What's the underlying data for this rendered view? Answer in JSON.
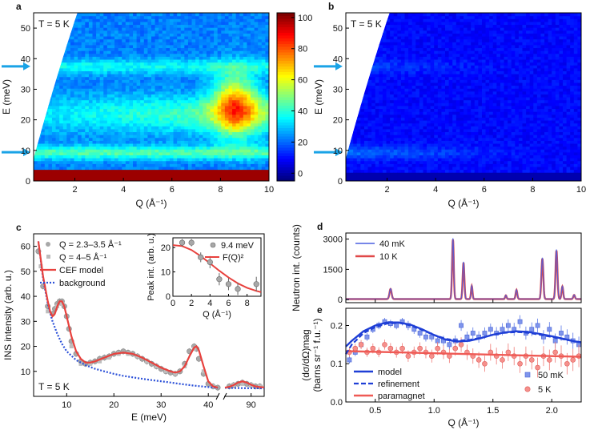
{
  "colors": {
    "cef_model": "#e8413d",
    "background_line": "#2b50d8",
    "data_gray": "#a8a8a8",
    "arrow": "#1aa3e6",
    "trace_40mK": "#4a5ee0",
    "trace_10K": "#e04848",
    "model_blue": "#1f3fd6",
    "paramagnet_red": "#ef5a55"
  },
  "chart_data": [
    {
      "id": "a",
      "type": "heatmap",
      "panel_label": "a",
      "annotation": "T = 5 K",
      "x_label": "Q (Å⁻¹)",
      "y_label": "E (meV)",
      "x_ticks": [
        "2",
        "4",
        "6",
        "8",
        "10"
      ],
      "y_ticks": [
        "0",
        "10",
        "20",
        "30",
        "40",
        "50"
      ],
      "xlim": [
        0.3,
        10
      ],
      "ylim": [
        0,
        55
      ],
      "colorbar": {
        "ticks": [
          "0",
          "20",
          "40",
          "60",
          "80",
          "100"
        ],
        "range": [
          -5,
          103
        ],
        "colormap": "jet"
      },
      "arrows_E": [
        9.4,
        37.5
      ],
      "levels": [
        9.4,
        22,
        37.5
      ]
    },
    {
      "id": "b",
      "type": "heatmap",
      "panel_label": "b",
      "annotation": "T = 5 K",
      "x_label": "Q (Å⁻¹)",
      "y_label": "E (meV)",
      "x_ticks": [
        "2",
        "4",
        "6",
        "8",
        "10"
      ],
      "y_ticks": [
        "0",
        "10",
        "20",
        "30",
        "40",
        "50"
      ],
      "xlim": [
        0.3,
        10
      ],
      "ylim": [
        0,
        55
      ],
      "arrows_E": [
        9.4,
        37.5
      ]
    },
    {
      "id": "c",
      "type": "scatter",
      "panel_label": "c",
      "annotation": "T = 5 K",
      "x_label": "E (meV)",
      "y_label": "INS intensity (arb. u.)",
      "x_ticks": [
        "10",
        "20",
        "30",
        "40",
        "90"
      ],
      "y_ticks": [
        "10",
        "20",
        "30",
        "40",
        "50",
        "60"
      ],
      "xlim_main": [
        3,
        42
      ],
      "xlim_broken": [
        84,
        93
      ],
      "ylim": [
        0,
        65
      ],
      "legend": [
        "Q = 2.3–3.5 Å⁻¹",
        "Q = 4–5 Å⁻¹",
        "CEF model",
        "background"
      ],
      "series": [
        {
          "name": "Q = 2.3–3.5 Å⁻¹",
          "x": [
            4,
            5,
            6,
            7,
            7.5,
            8,
            8.5,
            9,
            9.5,
            10,
            10.5,
            11,
            12,
            13,
            14,
            15,
            16,
            17,
            18,
            19,
            20,
            21,
            22,
            23,
            24,
            25,
            26,
            27,
            28,
            29,
            30,
            31,
            32,
            33,
            34,
            35,
            36,
            37,
            37.5,
            38,
            39,
            40,
            41,
            42,
            85,
            86,
            87,
            88,
            89,
            90,
            91,
            92
          ],
          "y": [
            58,
            44,
            36,
            33,
            35,
            37,
            38,
            38,
            36,
            32,
            27,
            22,
            17,
            14,
            13,
            13.5,
            14,
            15,
            15.5,
            16,
            17,
            17.5,
            18,
            17.5,
            17,
            16,
            15,
            14,
            13,
            12,
            11,
            10,
            9.5,
            9,
            10,
            13,
            18,
            20,
            19,
            15,
            9,
            5,
            4,
            3.5,
            4,
            4.5,
            5,
            5.5,
            5,
            4.5,
            4,
            4
          ]
        },
        {
          "name": "Q = 4–5 Å⁻¹",
          "x": [
            4.5,
            6,
            8,
            9,
            11,
            13,
            15,
            17,
            19,
            21,
            23,
            25,
            27,
            29,
            31,
            33,
            35,
            37,
            39,
            41,
            86,
            88,
            90,
            92
          ],
          "y": [
            52,
            34,
            36,
            37,
            20,
            13,
            13,
            14,
            15.5,
            17,
            17,
            16,
            14,
            12,
            10,
            9,
            12,
            19,
            10,
            4,
            4.5,
            5,
            4.5,
            4
          ]
        }
      ],
      "cef_model": {
        "x": [
          4,
          5,
          6,
          6.5,
          7,
          7.5,
          8,
          8.5,
          9,
          9.5,
          10,
          11,
          12,
          13,
          14,
          15,
          16,
          18,
          20,
          22,
          24,
          26,
          28,
          30,
          32,
          33,
          34,
          35,
          36,
          37,
          37.5,
          38,
          39,
          40,
          41,
          42,
          84,
          85,
          86,
          87,
          88,
          89,
          90,
          91,
          92,
          93
        ],
        "y": [
          62,
          48,
          38,
          34,
          32,
          33,
          36,
          38,
          38,
          36,
          32,
          24,
          18,
          15,
          13.5,
          13.5,
          14,
          15.5,
          17,
          17.5,
          17,
          15.5,
          13.5,
          11.5,
          10,
          9.5,
          10,
          12,
          16,
          19.5,
          20,
          18.5,
          12,
          6,
          4,
          3.5,
          3.5,
          3.8,
          4.5,
          5.5,
          6,
          5.5,
          4.6,
          4,
          3.7,
          3.6
        ]
      },
      "background_model": {
        "x": [
          4,
          5,
          6,
          7,
          8,
          9,
          10,
          12,
          14,
          16,
          18,
          20,
          22,
          25,
          28,
          31,
          34,
          37,
          40,
          42,
          84,
          88,
          93
        ],
        "y": [
          62,
          47,
          37,
          30,
          25,
          21,
          18,
          14.5,
          12.5,
          11,
          10,
          9,
          8.2,
          7.3,
          6.5,
          5.8,
          5,
          4.3,
          3.7,
          3.4,
          3.4,
          3.3,
          3.2
        ]
      },
      "inset": {
        "type": "scatter",
        "x_label": "Q (Å⁻¹)",
        "y_label": "Peak int. (arb. u.)",
        "x_ticks": [
          "0",
          "2",
          "4",
          "6",
          "8"
        ],
        "y_ticks": [
          "0",
          "10",
          "20"
        ],
        "xlim": [
          0,
          9.5
        ],
        "ylim": [
          0,
          24
        ],
        "legend": [
          "9.4 meV",
          "F(Q)²"
        ],
        "points": {
          "name": "9.4 meV",
          "x": [
            1,
            2,
            3,
            4,
            5,
            6,
            7,
            9
          ],
          "y": [
            22,
            22,
            16,
            14,
            7,
            5,
            3,
            5
          ],
          "yerr": [
            1.5,
            1.5,
            2,
            2.5,
            2.5,
            2.5,
            2.5,
            3
          ]
        },
        "fq2": {
          "name": "F(Q)²",
          "x": [
            0,
            1,
            2,
            3,
            4,
            5,
            6,
            7,
            8,
            9,
            9.5
          ],
          "y": [
            21,
            20.6,
            19,
            16.5,
            13.5,
            10.5,
            7.7,
            5.3,
            3.5,
            2.2,
            1.7
          ]
        }
      }
    },
    {
      "id": "d",
      "type": "line",
      "panel_label": "d",
      "y_label": "Neutron int. (counts)",
      "y_ticks": [
        "0",
        "1500",
        "3000"
      ],
      "xlim": [
        0.25,
        2.25
      ],
      "ylim": [
        -150,
        3300
      ],
      "legend": [
        "40 mK",
        "10 K"
      ],
      "peaks": [
        {
          "x": 0.63,
          "h": 500,
          "w": 0.009
        },
        {
          "x": 1.16,
          "h": 2950,
          "w": 0.007
        },
        {
          "x": 1.25,
          "h": 1800,
          "w": 0.007
        },
        {
          "x": 1.32,
          "h": 650,
          "w": 0.006
        },
        {
          "x": 1.61,
          "h": 180,
          "w": 0.006
        },
        {
          "x": 1.7,
          "h": 450,
          "w": 0.007
        },
        {
          "x": 1.92,
          "h": 2000,
          "w": 0.008
        },
        {
          "x": 2.04,
          "h": 2400,
          "w": 0.008
        },
        {
          "x": 2.09,
          "h": 620,
          "w": 0.007
        },
        {
          "x": 2.19,
          "h": 200,
          "w": 0.007
        }
      ],
      "baseline": 30
    },
    {
      "id": "e",
      "type": "scatter",
      "panel_label": "e",
      "x_label": "Q (Å⁻¹)",
      "y_label": "(dσ/dΩ)mag (barns sr⁻¹ f.u.⁻¹)",
      "x_ticks": [
        "0.5",
        "1.0",
        "1.5",
        "2.0"
      ],
      "y_ticks": [
        "0.0",
        "0.1",
        "0.2"
      ],
      "xlim": [
        0.25,
        2.25
      ],
      "ylim": [
        0,
        0.245
      ],
      "legend": [
        "model",
        "refinement",
        "paramagnet",
        "50 mK",
        "5 K"
      ],
      "series": [
        {
          "name": "50 mK",
          "x": [
            0.28,
            0.33,
            0.38,
            0.43,
            0.48,
            0.53,
            0.58,
            0.63,
            0.68,
            0.73,
            0.78,
            0.83,
            0.88,
            0.93,
            0.98,
            1.03,
            1.08,
            1.13,
            1.18,
            1.23,
            1.28,
            1.33,
            1.38,
            1.43,
            1.48,
            1.53,
            1.58,
            1.63,
            1.68,
            1.73,
            1.78,
            1.83,
            1.88,
            1.93,
            1.98,
            2.03,
            2.08,
            2.13,
            2.18,
            2.23
          ],
          "y": [
            0.11,
            0.13,
            0.15,
            0.17,
            0.19,
            0.2,
            0.21,
            0.205,
            0.2,
            0.21,
            0.2,
            0.19,
            0.18,
            0.17,
            0.17,
            0.16,
            0.16,
            0.15,
            0.16,
            0.2,
            0.17,
            0.18,
            0.17,
            0.18,
            0.19,
            0.18,
            0.19,
            0.2,
            0.19,
            0.21,
            0.18,
            0.19,
            0.2,
            0.17,
            0.19,
            0.16,
            0.18,
            0.17,
            0.16,
            0.15
          ],
          "yerr": [
            0.01,
            0.01,
            0.01,
            0.01,
            0.01,
            0.01,
            0.01,
            0.01,
            0.01,
            0.01,
            0.012,
            0.012,
            0.012,
            0.012,
            0.012,
            0.013,
            0.013,
            0.013,
            0.014,
            0.014,
            0.014,
            0.015,
            0.015,
            0.015,
            0.015,
            0.016,
            0.016,
            0.016,
            0.017,
            0.017,
            0.017,
            0.018,
            0.018,
            0.018,
            0.019,
            0.019,
            0.02,
            0.02,
            0.021,
            0.021
          ]
        },
        {
          "name": "5 K",
          "x": [
            0.28,
            0.33,
            0.38,
            0.43,
            0.48,
            0.53,
            0.58,
            0.63,
            0.68,
            0.73,
            0.78,
            0.83,
            0.88,
            0.93,
            0.98,
            1.03,
            1.08,
            1.13,
            1.18,
            1.23,
            1.28,
            1.33,
            1.38,
            1.43,
            1.48,
            1.53,
            1.58,
            1.63,
            1.68,
            1.73,
            1.78,
            1.83,
            1.88,
            1.93,
            1.98,
            2.03,
            2.08,
            2.13,
            2.18,
            2.23
          ],
          "y": [
            0.13,
            0.14,
            0.15,
            0.13,
            0.14,
            0.13,
            0.15,
            0.14,
            0.13,
            0.14,
            0.12,
            0.13,
            0.14,
            0.13,
            0.12,
            0.14,
            0.13,
            0.12,
            0.14,
            0.15,
            0.13,
            0.12,
            0.11,
            0.1,
            0.13,
            0.12,
            0.11,
            0.13,
            0.12,
            0.1,
            0.12,
            0.11,
            0.09,
            0.12,
            0.11,
            0.13,
            0.12,
            0.1,
            0.11,
            0.12
          ],
          "yerr": [
            0.012,
            0.012,
            0.012,
            0.012,
            0.013,
            0.013,
            0.013,
            0.014,
            0.014,
            0.014,
            0.015,
            0.015,
            0.016,
            0.016,
            0.017,
            0.017,
            0.018,
            0.018,
            0.019,
            0.019,
            0.02,
            0.02,
            0.021,
            0.021,
            0.022,
            0.022,
            0.023,
            0.023,
            0.024,
            0.024,
            0.025,
            0.025,
            0.026,
            0.026,
            0.027,
            0.027,
            0.028,
            0.028,
            0.029,
            0.029
          ]
        }
      ],
      "model": {
        "x": [
          0.25,
          0.3,
          0.4,
          0.5,
          0.6,
          0.7,
          0.8,
          0.9,
          1.0,
          1.1,
          1.2,
          1.3,
          1.4,
          1.5,
          1.6,
          1.7,
          1.8,
          1.9,
          2.0,
          2.1,
          2.2,
          2.25
        ],
        "y": [
          0.145,
          0.16,
          0.185,
          0.2,
          0.208,
          0.208,
          0.202,
          0.19,
          0.175,
          0.163,
          0.158,
          0.16,
          0.167,
          0.176,
          0.182,
          0.185,
          0.183,
          0.178,
          0.172,
          0.165,
          0.158,
          0.156
        ]
      },
      "refinement": {
        "x": [
          0.25,
          0.3,
          0.4,
          0.5,
          0.6,
          0.7,
          0.8,
          0.9,
          1.0,
          1.1,
          1.2,
          1.3,
          1.4,
          1.5,
          1.6,
          1.7,
          1.8,
          1.9,
          2.0,
          2.1,
          2.2,
          2.25
        ],
        "y": [
          0.125,
          0.15,
          0.18,
          0.196,
          0.205,
          0.207,
          0.2,
          0.188,
          0.175,
          0.165,
          0.16,
          0.162,
          0.168,
          0.176,
          0.181,
          0.183,
          0.181,
          0.176,
          0.17,
          0.164,
          0.158,
          0.156
        ]
      },
      "paramagnet": {
        "x": [
          0.25,
          2.25
        ],
        "y": [
          0.133,
          0.118
        ]
      }
    }
  ]
}
